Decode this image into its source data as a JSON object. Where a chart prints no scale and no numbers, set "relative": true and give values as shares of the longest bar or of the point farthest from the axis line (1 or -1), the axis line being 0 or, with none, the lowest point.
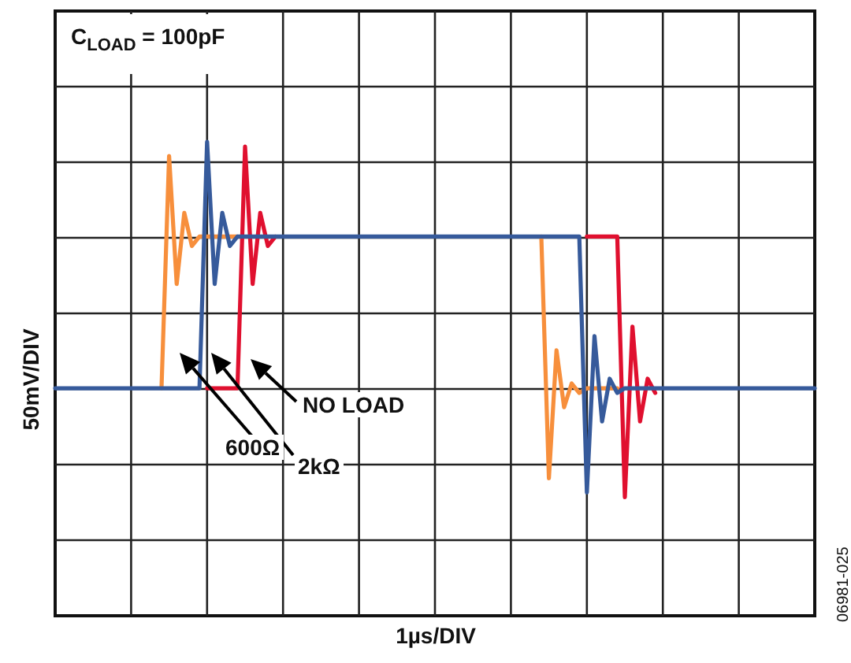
{
  "chart_data": {
    "type": "line",
    "relative": true,
    "grid": true,
    "xlabel": "1µs/DIV",
    "ylabel": "50mV/DIV",
    "annotations": [
      "C$_{LOAD}$ = 100pF",
      "NO LOAD",
      "600Ω",
      "2kΩ",
      "06981-025"
    ],
    "categories": [
      null,
      null,
      null,
      null,
      null,
      null,
      null,
      null,
      null,
      null,
      null,
      null,
      null,
      null,
      null,
      null,
      null,
      null,
      null,
      null,
      null,
      null,
      null,
      null,
      null,
      null,
      null,
      null,
      null,
      null,
      null,
      null,
      null,
      null,
      null,
      null,
      null,
      null,
      null,
      null,
      null,
      null,
      null,
      null,
      null,
      null,
      null,
      null,
      null,
      null,
      null,
      null,
      null,
      null,
      null,
      null,
      null,
      null,
      null,
      null,
      null,
      null,
      null,
      null,
      null,
      null,
      null,
      null,
      null,
      null,
      null,
      null,
      null,
      null,
      null,
      null,
      null,
      null,
      null,
      null,
      null,
      null,
      null,
      null,
      null,
      null,
      null,
      null,
      null,
      null,
      null,
      null,
      null,
      null,
      null,
      null,
      null,
      null,
      null,
      null,
      null
    ],
    "series": [
      {
        "color": "#e0102f",
        "values": [
          null,
          null,
          null,
          null,
          null,
          null,
          null,
          null,
          null,
          null,
          null,
          null,
          null,
          null,
          null,
          null,
          null,
          null,
          null,
          null,
          0.48,
          0.48,
          0.48,
          0.48,
          0.48,
          0.99,
          0.7,
          0.85,
          0.78,
          0.8,
          null,
          null,
          null,
          null,
          null,
          null,
          null,
          null,
          null,
          null,
          null,
          null,
          null,
          null,
          null,
          null,
          null,
          null,
          null,
          null,
          null,
          null,
          null,
          null,
          null,
          null,
          null,
          null,
          null,
          null,
          null,
          null,
          null,
          null,
          null,
          null,
          null,
          null,
          null,
          null,
          0.8,
          0.8,
          0.8,
          0.8,
          0.8,
          0.25,
          0.61,
          0.41,
          0.5,
          0.47,
          null,
          null,
          null,
          null,
          null,
          null,
          null,
          null,
          null,
          null,
          null,
          null,
          null,
          null,
          null,
          null,
          null,
          null,
          null,
          null,
          null
        ]
      },
      {
        "color": "#f78f3c",
        "values": [
          null,
          null,
          null,
          null,
          null,
          null,
          null,
          null,
          null,
          null,
          null,
          null,
          null,
          null,
          0.48,
          0.97,
          0.7,
          0.85,
          0.78,
          0.8,
          0.8,
          0.8,
          0.8,
          0.8,
          0.8,
          null,
          null,
          null,
          null,
          null,
          null,
          null,
          null,
          null,
          null,
          null,
          null,
          null,
          null,
          null,
          null,
          null,
          null,
          null,
          null,
          null,
          null,
          null,
          null,
          null,
          null,
          null,
          null,
          null,
          null,
          null,
          null,
          null,
          null,
          null,
          null,
          null,
          null,
          null,
          0.8,
          0.29,
          0.56,
          0.44,
          0.49,
          0.47,
          0.48,
          0.48,
          0.48,
          0.48,
          0.48,
          null,
          null,
          null,
          null,
          null,
          null,
          null,
          null,
          null,
          null,
          null,
          null,
          null,
          null,
          null,
          null,
          null,
          null,
          null,
          null,
          null,
          null,
          null,
          null,
          null,
          null
        ]
      },
      {
        "color": "#365a9b",
        "values": [
          0.48,
          0.48,
          0.48,
          0.48,
          0.48,
          0.48,
          0.48,
          0.48,
          0.48,
          0.48,
          0.48,
          0.48,
          0.48,
          0.48,
          0.48,
          0.48,
          0.48,
          0.48,
          0.48,
          0.48,
          1.0,
          0.7,
          0.85,
          0.78,
          0.8,
          0.8,
          0.8,
          0.8,
          0.8,
          0.8,
          0.8,
          0.8,
          0.8,
          0.8,
          0.8,
          0.8,
          0.8,
          0.8,
          0.8,
          0.8,
          0.8,
          0.8,
          0.8,
          0.8,
          0.8,
          0.8,
          0.8,
          0.8,
          0.8,
          0.8,
          0.8,
          0.8,
          0.8,
          0.8,
          0.8,
          0.8,
          0.8,
          0.8,
          0.8,
          0.8,
          0.8,
          0.8,
          0.8,
          0.8,
          0.8,
          0.8,
          0.8,
          0.8,
          0.8,
          0.8,
          0.26,
          0.59,
          0.41,
          0.5,
          0.47,
          0.48,
          0.48,
          0.48,
          0.48,
          0.48,
          0.48,
          0.48,
          0.48,
          0.48,
          0.48,
          0.48,
          0.48,
          0.48,
          0.48,
          0.48,
          0.48,
          0.48,
          0.48,
          0.48,
          0.48,
          0.48,
          0.48,
          0.48,
          0.48,
          0.48,
          0.48
        ]
      }
    ]
  }
}
